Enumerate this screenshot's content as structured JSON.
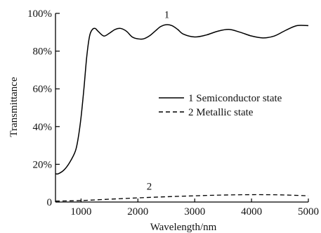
{
  "chart_data": {
    "type": "line",
    "xlabel": "Wavelength/nm",
    "ylabel": "Transmittance",
    "xlim": [
      550,
      5000
    ],
    "ylim": [
      0,
      100
    ],
    "x_ticks": [
      1000,
      2000,
      3000,
      4000,
      5000
    ],
    "x_tick_labels": [
      "1000",
      "2000",
      "3000",
      "4000",
      "5000"
    ],
    "y_ticks": [
      0,
      20,
      40,
      60,
      80,
      100
    ],
    "y_tick_labels": [
      "0",
      "20%",
      "40%",
      "60%",
      "80%",
      "100%"
    ],
    "grid": false,
    "legend_position": "center-right",
    "series": [
      {
        "name": "1 Semiconductor state",
        "curve_label": "1",
        "style": "solid",
        "color": "#000000",
        "x": [
          550,
          600,
          700,
          800,
          900,
          950,
          1000,
          1050,
          1100,
          1150,
          1200,
          1250,
          1300,
          1400,
          1500,
          1600,
          1700,
          1800,
          1900,
          2000,
          2100,
          2200,
          2300,
          2400,
          2500,
          2600,
          2700,
          2800,
          3000,
          3200,
          3400,
          3600,
          3800,
          4000,
          4200,
          4400,
          4600,
          4800,
          5000
        ],
        "y": [
          15,
          15,
          17,
          21,
          27,
          34,
          45,
          60,
          77,
          88,
          91.5,
          92,
          90.5,
          88,
          89.5,
          91.5,
          92,
          90.5,
          87.5,
          86.5,
          86.5,
          88,
          90.5,
          93,
          94,
          93.5,
          91.5,
          89,
          87.5,
          88.5,
          90.5,
          91.5,
          90,
          88,
          87,
          88,
          91,
          93.5,
          93.5
        ]
      },
      {
        "name": "2 Metallic state",
        "curve_label": "2",
        "style": "dashed",
        "color": "#000000",
        "x": [
          550,
          1000,
          1500,
          2000,
          2500,
          3000,
          3500,
          4000,
          4500,
          5000
        ],
        "y": [
          0.5,
          0.8,
          1.5,
          2.2,
          2.8,
          3.3,
          3.7,
          3.9,
          3.8,
          3.3
        ]
      }
    ]
  }
}
